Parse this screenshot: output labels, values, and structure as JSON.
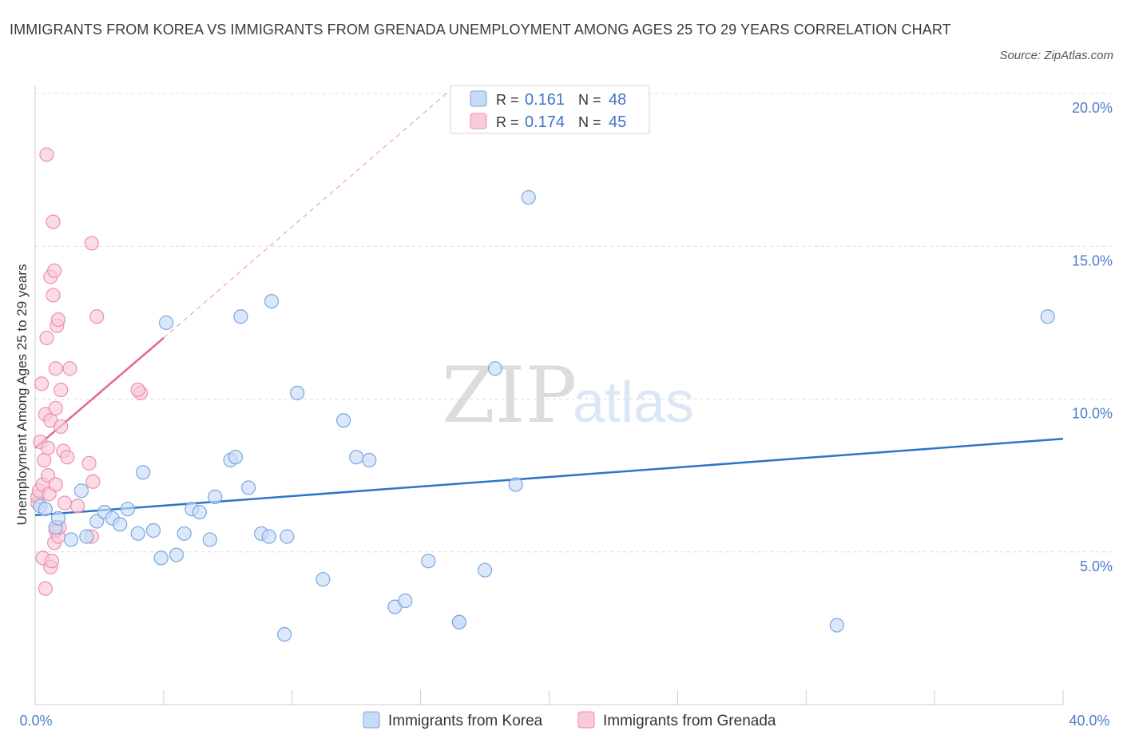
{
  "title": "IMMIGRANTS FROM KOREA VS IMMIGRANTS FROM GRENADA UNEMPLOYMENT AMONG AGES 25 TO 29 YEARS CORRELATION CHART",
  "source": "Source: ZipAtlas.com",
  "watermark": {
    "zip": "ZIP",
    "atlas": "atlas"
  },
  "legend_stats": [
    {
      "r_label": "R =",
      "r_value": "0.161",
      "n_label": "N =",
      "n_value": "48"
    },
    {
      "r_label": "R =",
      "r_value": "0.174",
      "n_label": "N =",
      "n_value": "45"
    }
  ],
  "colors": {
    "korea_fill": "#c6dbf7",
    "korea_stroke": "#7aa7e0",
    "korea_line": "#2f73c9",
    "grenada_fill": "#f9cad8",
    "grenada_stroke": "#ec8fad",
    "grenada_line": "#e4668f",
    "grid": "#dcdcdc",
    "tick": "#4a7fc8"
  },
  "chart_data": {
    "type": "scatter",
    "title": "IMMIGRANTS FROM KOREA VS IMMIGRANTS FROM GRENADA UNEMPLOYMENT AMONG AGES 25 TO 29 YEARS CORRELATION CHART",
    "xlabel": "",
    "ylabel": "Unemployment Among Ages 25 to 29 years",
    "xlim": [
      0,
      40
    ],
    "ylim": [
      0,
      20
    ],
    "x_tick_labels": [
      "0.0%",
      "40.0%"
    ],
    "y_ticks": [
      {
        "value": 5,
        "label": "5.0%"
      },
      {
        "value": 10,
        "label": "10.0%"
      },
      {
        "value": 15,
        "label": "15.0%"
      },
      {
        "value": 20,
        "label": "20.0%"
      }
    ],
    "grid": true,
    "legend_position": "bottom-center",
    "series": [
      {
        "name": "Immigrants from Korea",
        "color": "#7aa7e0",
        "trend": {
          "x": [
            0,
            40
          ],
          "y": [
            6.2,
            8.7
          ]
        },
        "points": [
          [
            0.2,
            6.5
          ],
          [
            0.4,
            6.4
          ],
          [
            0.8,
            5.8
          ],
          [
            0.9,
            6.1
          ],
          [
            1.4,
            5.4
          ],
          [
            1.8,
            7.0
          ],
          [
            2.0,
            5.5
          ],
          [
            2.4,
            6.0
          ],
          [
            2.7,
            6.3
          ],
          [
            3.0,
            6.1
          ],
          [
            3.3,
            5.9
          ],
          [
            3.6,
            6.4
          ],
          [
            4.0,
            5.6
          ],
          [
            4.2,
            7.6
          ],
          [
            4.6,
            5.7
          ],
          [
            4.9,
            4.8
          ],
          [
            5.1,
            12.5
          ],
          [
            5.5,
            4.9
          ],
          [
            5.8,
            5.6
          ],
          [
            6.1,
            6.4
          ],
          [
            6.4,
            6.3
          ],
          [
            6.8,
            5.4
          ],
          [
            7.0,
            6.8
          ],
          [
            7.6,
            8.0
          ],
          [
            7.8,
            8.1
          ],
          [
            8.0,
            12.7
          ],
          [
            8.3,
            7.1
          ],
          [
            8.8,
            5.6
          ],
          [
            9.1,
            5.5
          ],
          [
            9.2,
            13.2
          ],
          [
            9.7,
            2.3
          ],
          [
            9.8,
            5.5
          ],
          [
            10.2,
            10.2
          ],
          [
            11.2,
            4.1
          ],
          [
            12.0,
            9.3
          ],
          [
            12.5,
            8.1
          ],
          [
            13.0,
            8.0
          ],
          [
            14.0,
            3.2
          ],
          [
            14.4,
            3.4
          ],
          [
            15.3,
            4.7
          ],
          [
            16.5,
            2.7
          ],
          [
            16.5,
            2.7
          ],
          [
            17.5,
            4.4
          ],
          [
            17.9,
            11.0
          ],
          [
            18.7,
            7.2
          ],
          [
            19.2,
            16.6
          ],
          [
            31.2,
            2.6
          ],
          [
            39.4,
            12.7
          ]
        ]
      },
      {
        "name": "Immigrants from Grenada",
        "color": "#ec8fad",
        "trend": {
          "x": [
            0,
            5.0
          ],
          "y": [
            8.4,
            12.0
          ]
        },
        "trend_extension": {
          "x": [
            5.0,
            16.0
          ],
          "y": [
            12.0,
            20.0
          ]
        },
        "points": [
          [
            0.1,
            6.6
          ],
          [
            0.1,
            6.8
          ],
          [
            0.15,
            7.0
          ],
          [
            0.2,
            8.6
          ],
          [
            0.25,
            10.5
          ],
          [
            0.3,
            4.8
          ],
          [
            0.3,
            7.2
          ],
          [
            0.35,
            8.0
          ],
          [
            0.4,
            3.8
          ],
          [
            0.4,
            9.5
          ],
          [
            0.45,
            12.0
          ],
          [
            0.45,
            18.0
          ],
          [
            0.5,
            7.5
          ],
          [
            0.5,
            8.4
          ],
          [
            0.55,
            6.9
          ],
          [
            0.6,
            9.3
          ],
          [
            0.6,
            4.5
          ],
          [
            0.6,
            14.0
          ],
          [
            0.65,
            4.7
          ],
          [
            0.7,
            15.8
          ],
          [
            0.75,
            5.3
          ],
          [
            0.7,
            13.4
          ],
          [
            0.75,
            14.2
          ],
          [
            0.8,
            5.7
          ],
          [
            0.8,
            9.7
          ],
          [
            0.8,
            11.0
          ],
          [
            0.8,
            7.2
          ],
          [
            0.85,
            12.4
          ],
          [
            0.9,
            12.6
          ],
          [
            0.9,
            5.5
          ],
          [
            0.95,
            5.8
          ],
          [
            1.0,
            9.1
          ],
          [
            1.0,
            10.3
          ],
          [
            1.1,
            8.3
          ],
          [
            1.15,
            6.6
          ],
          [
            1.25,
            8.1
          ],
          [
            1.35,
            11.0
          ],
          [
            1.65,
            6.5
          ],
          [
            2.1,
            7.9
          ],
          [
            2.2,
            5.5
          ],
          [
            2.25,
            7.3
          ],
          [
            2.2,
            15.1
          ],
          [
            2.4,
            12.7
          ],
          [
            4.1,
            10.2
          ],
          [
            4.0,
            10.3
          ]
        ]
      }
    ]
  }
}
